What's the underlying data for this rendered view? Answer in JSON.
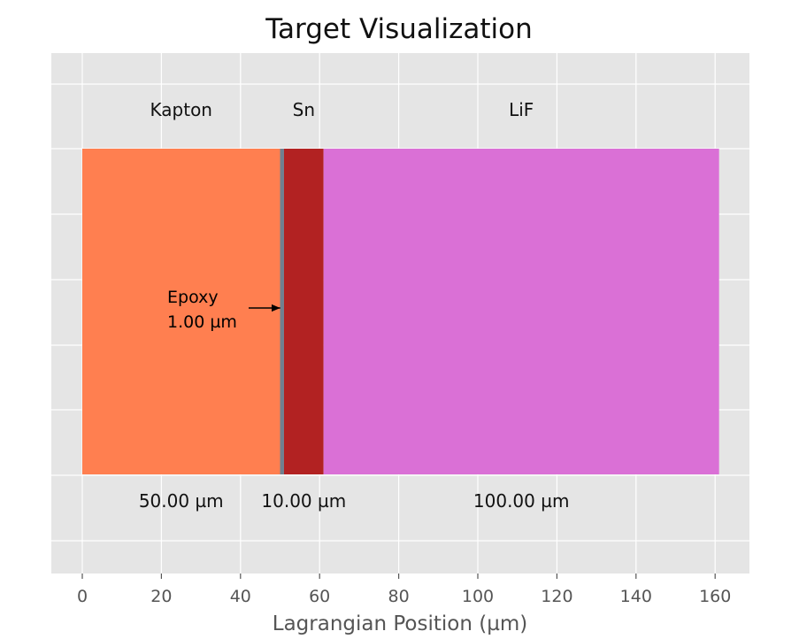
{
  "chart_data": {
    "type": "bar",
    "orientation": "horizontal-stacked",
    "title": "Target Visualization",
    "xlabel": "Lagrangian Position (µm)",
    "ylabel": "",
    "xlim": [
      -8,
      170
    ],
    "grid": true,
    "x_ticks": [
      0,
      20,
      40,
      60,
      80,
      100,
      120,
      140,
      160
    ],
    "layers": [
      {
        "name": "Kapton",
        "start": 0,
        "thickness": 50,
        "thickness_label": "50.00 µm",
        "color": "#ff7f50",
        "show_name": true
      },
      {
        "name": "Epoxy",
        "start": 50,
        "thickness": 1,
        "thickness_label": "",
        "color": "#708090",
        "show_name": false
      },
      {
        "name": "Sn",
        "start": 51,
        "thickness": 10,
        "thickness_label": "10.00 µm",
        "color": "#b22222",
        "show_name": true
      },
      {
        "name": "LiF",
        "start": 61,
        "thickness": 100,
        "thickness_label": "100.00 µm",
        "color": "#da70d6",
        "show_name": true
      }
    ],
    "annotations": [
      {
        "line1": "Epoxy",
        "line2": "1.00 µm",
        "points_to_x": 50.5
      }
    ]
  }
}
